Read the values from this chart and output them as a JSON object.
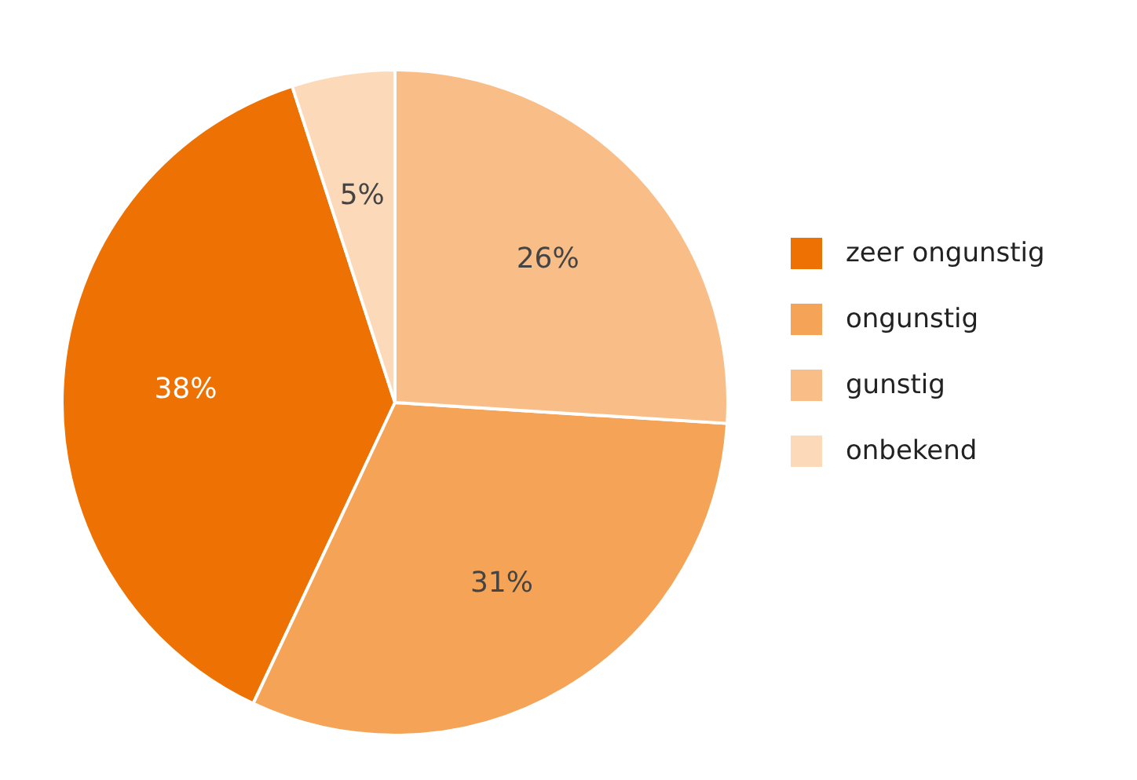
{
  "chart_data": {
    "type": "pie",
    "categories": [
      "zeer ongunstig",
      "ongunstig",
      "gunstig",
      "onbekend"
    ],
    "values": [
      38,
      31,
      26,
      5
    ],
    "colors": [
      "#ee7203",
      "#f5a356",
      "#f9be88",
      "#fcd9b8"
    ],
    "value_labels": [
      "38%",
      "31%",
      "26%",
      "5%"
    ],
    "legend": "right"
  }
}
